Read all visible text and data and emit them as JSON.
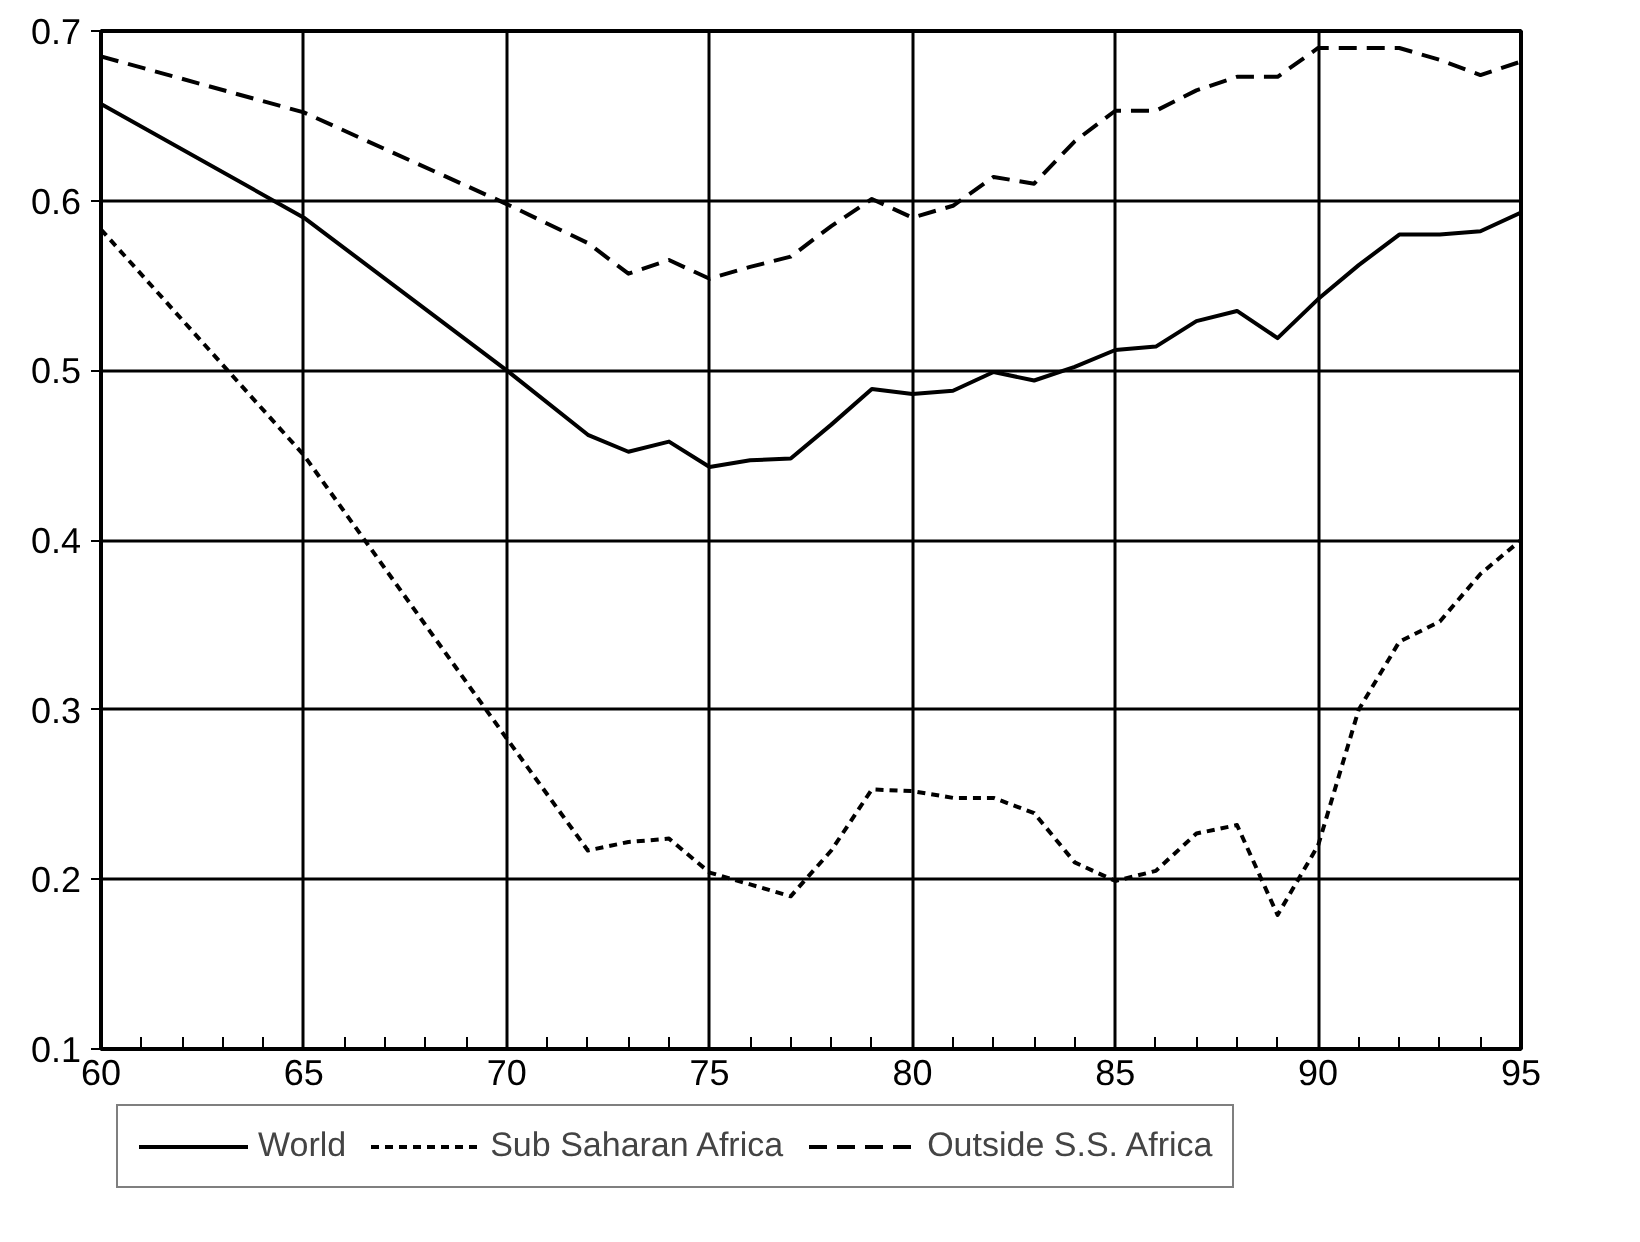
{
  "chart_data": {
    "type": "line",
    "x": [
      60,
      65,
      70,
      72,
      73,
      74,
      75,
      76,
      77,
      78,
      79,
      80,
      81,
      82,
      83,
      84,
      85,
      86,
      87,
      88,
      89,
      90,
      91,
      92,
      93,
      94,
      95
    ],
    "series": [
      {
        "name": "World",
        "color": "#000000",
        "line_style": "solid",
        "values": [
          0.657,
          0.59,
          0.5,
          0.462,
          0.452,
          0.458,
          0.443,
          0.447,
          0.448,
          0.468,
          0.489,
          0.486,
          0.488,
          0.499,
          0.494,
          0.502,
          0.512,
          0.514,
          0.529,
          0.535,
          0.519,
          0.542,
          0.562,
          0.58,
          0.58,
          0.582,
          0.593
        ]
      },
      {
        "name": "Sub Saharan Africa",
        "color": "#000000",
        "line_style": "dotted",
        "values": [
          0.583,
          0.45,
          0.283,
          0.217,
          0.222,
          0.224,
          0.204,
          0.197,
          0.19,
          0.217,
          0.253,
          0.252,
          0.248,
          0.248,
          0.239,
          0.21,
          0.199,
          0.205,
          0.227,
          0.232,
          0.179,
          0.22,
          0.3,
          0.34,
          0.352,
          0.38,
          0.4
        ]
      },
      {
        "name": "Outside S.S. Africa",
        "color": "#000000",
        "line_style": "dashed",
        "values": [
          0.685,
          0.652,
          0.598,
          0.575,
          0.557,
          0.565,
          0.554,
          0.561,
          0.567,
          0.585,
          0.601,
          0.59,
          0.597,
          0.614,
          0.61,
          0.635,
          0.653,
          0.653,
          0.665,
          0.673,
          0.673,
          0.69,
          0.69,
          0.69,
          0.683,
          0.674,
          0.682
        ]
      }
    ],
    "xlim": [
      60,
      95
    ],
    "xticks": [
      60,
      65,
      70,
      75,
      80,
      85,
      90,
      95
    ],
    "ylim": [
      0.1,
      0.7
    ],
    "yticks": [
      0.1,
      0.2,
      0.3,
      0.4,
      0.5,
      0.6,
      0.7
    ],
    "grid": true,
    "legend": "bottom"
  }
}
